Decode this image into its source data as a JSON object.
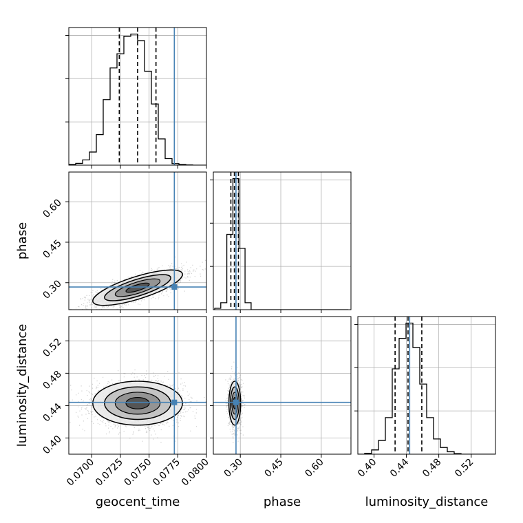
{
  "chart_data": {
    "type": "corner",
    "parameters": [
      "geocent_time",
      "phase",
      "luminosity_distance"
    ],
    "axis_labels": {
      "x": [
        "geocent_time",
        "phase",
        "luminosity_distance"
      ],
      "y": [
        "phase",
        "luminosity_distance"
      ]
    },
    "ranges": {
      "geocent_time": [
        0.068,
        0.08
      ],
      "phase": [
        0.2,
        0.71
      ],
      "luminosity_distance": [
        0.38,
        0.55
      ]
    },
    "ticks": {
      "geocent_time": [
        0.07,
        0.0725,
        0.075,
        0.0775,
        0.08
      ],
      "phase": [
        0.3,
        0.45,
        0.6
      ],
      "luminosity_distance": [
        0.4,
        0.44,
        0.48,
        0.52
      ]
    },
    "tick_labels": {
      "geocent_time": [
        "0.0700",
        "0.0725",
        "0.0750",
        "0.0775",
        "0.0800"
      ],
      "phase": [
        "0.30",
        "0.45",
        "0.60"
      ],
      "luminosity_distance": [
        "0.40",
        "0.44",
        "0.48",
        "0.52"
      ]
    },
    "truths": {
      "geocent_time": 0.0772,
      "phase": 0.284,
      "luminosity_distance": 0.444
    },
    "quantiles": {
      "geocent_time": [
        0.0724,
        0.074,
        0.0756
      ],
      "phase": [
        0.265,
        0.278,
        0.293
      ],
      "luminosity_distance": [
        0.426,
        0.442,
        0.459
      ]
    },
    "histograms": {
      "geocent_time": {
        "bin_edges": [
          0.068,
          0.0686,
          0.0692,
          0.0698,
          0.0704,
          0.071,
          0.0716,
          0.0722,
          0.0728,
          0.0734,
          0.074,
          0.0746,
          0.0752,
          0.0758,
          0.0764,
          0.077,
          0.0776,
          0.0782,
          0.0788,
          0.0794,
          0.08
        ],
        "counts": [
          0.3,
          0.8,
          2.4,
          6.0,
          14.0,
          30.0,
          44.5,
          51.0,
          59.0,
          60.0,
          57.0,
          43.0,
          28.0,
          12.0,
          3.0,
          0.7,
          0.3,
          0.1,
          0.0,
          0.0
        ]
      },
      "phase": {
        "bin_edges": [
          0.205,
          0.2275,
          0.25,
          0.2725,
          0.295,
          0.3175,
          0.34,
          0.3625,
          0.385,
          0.4075,
          0.43,
          0.4525,
          0.475,
          0.4975,
          0.52,
          0.5425,
          0.565,
          0.5875,
          0.61,
          0.6325,
          0.655,
          0.6775,
          0.7
        ],
        "counts": [
          0.5,
          2.5,
          27.0,
          47.0,
          22.0,
          2.5,
          0,
          0,
          0,
          0,
          0,
          0,
          0,
          0,
          0,
          0,
          0,
          0,
          0,
          0,
          0,
          0
        ]
      },
      "luminosity_distance": {
        "bin_edges": [
          0.38,
          0.3885,
          0.397,
          0.4055,
          0.414,
          0.4225,
          0.431,
          0.4395,
          0.448,
          0.4565,
          0.465,
          0.4735,
          0.482,
          0.4905,
          0.499,
          0.5075,
          0.516,
          0.5245,
          0.533,
          0.5415,
          0.55
        ],
        "counts": [
          0,
          0.3,
          1.4,
          4.5,
          12.0,
          28.0,
          38.0,
          43.0,
          35.0,
          23.0,
          12.0,
          5.0,
          2.2,
          0.8,
          0.2,
          0,
          0,
          0,
          0,
          0
        ]
      }
    },
    "density_2d": [
      {
        "x": "geocent_time",
        "y": "phase",
        "center": [
          0.074,
          0.2815
        ],
        "sigma": [
          0.0017,
          0.0285
        ],
        "rho": 0.75
      },
      {
        "x": "geocent_time",
        "y": "luminosity_distance",
        "center": [
          0.074,
          0.443
        ],
        "sigma": [
          0.0017,
          0.0118
        ],
        "rho": 0.0
      },
      {
        "x": "phase",
        "y": "luminosity_distance",
        "center": [
          0.2795,
          0.443
        ],
        "sigma": [
          0.0095,
          0.0118
        ],
        "rho": 0.0
      }
    ],
    "colors": {
      "truth": "#4682b4",
      "histogram": "#000000",
      "quantile": "#000000",
      "grid": "#b0b0b0",
      "points": "#555555"
    },
    "grid": true
  }
}
